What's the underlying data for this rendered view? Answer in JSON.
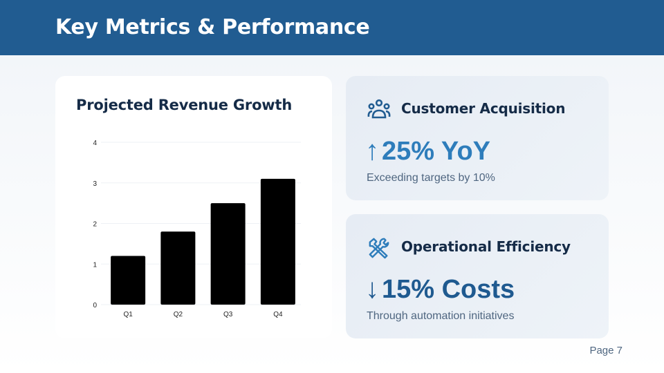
{
  "header": {
    "title": "Key Metrics & Performance"
  },
  "chart_card": {
    "title": "Projected Revenue Growth"
  },
  "chart_data": {
    "type": "bar",
    "title": "Projected Revenue Growth",
    "categories": [
      "Q1",
      "Q2",
      "Q3",
      "Q4"
    ],
    "values": [
      1.2,
      1.8,
      2.5,
      3.1
    ],
    "xlabel": "",
    "ylabel": "",
    "ylim": [
      0,
      4
    ],
    "yticks": [
      0,
      1,
      2,
      3,
      4
    ],
    "grid": true,
    "bar_color": "#000000",
    "legend": null
  },
  "metrics": [
    {
      "icon": "users-group-icon",
      "title": "Customer Acquisition",
      "arrow": "↑",
      "value": "25% YoY",
      "subtitle": "Exceeding targets by 10%",
      "color": "#2e7dbb"
    },
    {
      "icon": "tools-icon",
      "title": "Operational Efficiency",
      "arrow": "↓",
      "value": "15% Costs",
      "subtitle": "Through automation initiatives",
      "color": "#1f5a90"
    }
  ],
  "footer": {
    "page": "Page 7"
  },
  "colors": {
    "header_bg": "#215c91",
    "title_text": "#152b47",
    "accent": "#2e7dbb"
  }
}
